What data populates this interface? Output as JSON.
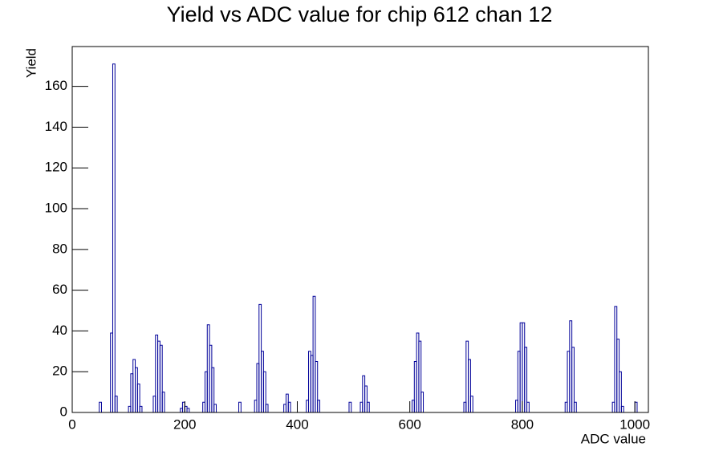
{
  "chart_data": {
    "type": "histogram",
    "title": "Yield vs ADC value for chip 612 chan 12",
    "x_label": "ADC value",
    "y_label": "Yield",
    "color": "#000099",
    "xlim": [
      0,
      1024
    ],
    "ylim": [
      0,
      179.55
    ],
    "xticks": [
      0,
      200,
      400,
      600,
      800,
      1000
    ],
    "yticks": [
      0,
      20,
      40,
      60,
      80,
      100,
      120,
      140,
      160
    ],
    "bins": [
      0,
      4,
      8,
      12,
      16,
      20,
      24,
      28,
      32,
      36,
      40,
      44,
      48,
      52,
      56,
      60,
      64,
      68,
      72,
      76,
      80,
      84,
      88,
      92,
      96,
      100,
      104,
      108,
      112,
      116,
      120,
      124,
      128,
      132,
      136,
      140,
      144,
      148,
      152,
      156,
      160,
      164,
      168,
      172,
      176,
      180,
      184,
      188,
      192,
      196,
      200,
      204,
      208,
      212,
      216,
      220,
      224,
      228,
      232,
      236,
      240,
      244,
      248,
      252,
      256,
      260,
      264,
      268,
      272,
      276,
      280,
      284,
      288,
      292,
      296,
      300,
      304,
      308,
      312,
      316,
      320,
      324,
      328,
      332,
      336,
      340,
      344,
      348,
      352,
      356,
      360,
      364,
      368,
      372,
      376,
      380,
      384,
      388,
      392,
      396,
      400,
      404,
      408,
      412,
      416,
      420,
      424,
      428,
      432,
      436,
      440,
      444,
      448,
      452,
      456,
      460,
      464,
      468,
      472,
      476,
      480,
      484,
      488,
      492,
      496,
      500,
      504,
      508,
      512,
      516,
      520,
      524,
      528,
      532,
      536,
      540,
      544,
      548,
      552,
      556,
      560,
      564,
      568,
      572,
      576,
      580,
      584,
      588,
      592,
      596,
      600,
      604,
      608,
      612,
      616,
      620,
      624,
      628,
      632,
      636,
      640,
      644,
      648,
      652,
      656,
      660,
      664,
      668,
      672,
      676,
      680,
      684,
      688,
      692,
      696,
      700,
      704,
      708,
      712,
      716,
      720,
      724,
      728,
      732,
      736,
      740,
      744,
      748,
      752,
      756,
      760,
      764,
      768,
      772,
      776,
      780,
      784,
      788,
      792,
      796,
      800,
      804,
      808,
      812,
      816,
      820,
      824,
      828,
      832,
      836,
      840,
      844,
      848,
      852,
      856,
      860,
      864,
      868,
      872,
      876,
      880,
      884,
      888,
      892,
      896,
      900,
      904,
      908,
      912,
      916,
      920,
      924,
      928,
      932,
      936,
      940,
      944,
      948,
      952,
      956,
      960,
      964,
      968,
      972,
      976,
      980,
      984,
      988,
      992,
      996,
      1000,
      1004,
      1008,
      1012,
      1016,
      1020,
      1024
    ],
    "counts": [
      0,
      0,
      0,
      0,
      0,
      0,
      0,
      0,
      0,
      0,
      0,
      0,
      5,
      0,
      0,
      0,
      0,
      39,
      171,
      8,
      0,
      0,
      0,
      0,
      0,
      3,
      19,
      26,
      22,
      14,
      3,
      0,
      0,
      0,
      0,
      0,
      8,
      38,
      35,
      33,
      10,
      0,
      0,
      0,
      0,
      0,
      0,
      0,
      2,
      5,
      3,
      2,
      0,
      0,
      0,
      0,
      0,
      0,
      5,
      20,
      43,
      33,
      22,
      4,
      0,
      0,
      0,
      0,
      0,
      0,
      0,
      0,
      0,
      0,
      5,
      0,
      0,
      0,
      0,
      0,
      0,
      6,
      24,
      53,
      30,
      20,
      4,
      0,
      0,
      0,
      0,
      0,
      0,
      0,
      4,
      9,
      5,
      0,
      0,
      0,
      0,
      0,
      0,
      0,
      6,
      30,
      28,
      57,
      25,
      6,
      0,
      0,
      0,
      0,
      0,
      0,
      0,
      0,
      0,
      0,
      0,
      0,
      0,
      5,
      0,
      0,
      0,
      0,
      5,
      18,
      13,
      5,
      0,
      0,
      0,
      0,
      0,
      0,
      0,
      0,
      0,
      0,
      0,
      0,
      0,
      0,
      0,
      0,
      0,
      0,
      0,
      6,
      25,
      39,
      35,
      10,
      0,
      0,
      0,
      0,
      0,
      0,
      0,
      0,
      0,
      0,
      0,
      0,
      0,
      0,
      0,
      0,
      0,
      0,
      5,
      35,
      26,
      8,
      0,
      0,
      0,
      0,
      0,
      0,
      0,
      0,
      0,
      0,
      0,
      0,
      0,
      0,
      0,
      0,
      0,
      0,
      0,
      6,
      30,
      44,
      44,
      32,
      5,
      0,
      0,
      0,
      0,
      0,
      0,
      0,
      0,
      0,
      0,
      0,
      0,
      0,
      0,
      0,
      0,
      5,
      30,
      45,
      32,
      5,
      0,
      0,
      0,
      0,
      0,
      0,
      0,
      0,
      0,
      0,
      0,
      0,
      0,
      0,
      0,
      0,
      5,
      52,
      36,
      20,
      3,
      0,
      0,
      0,
      0,
      0,
      5,
      0,
      0,
      0,
      0,
      0
    ]
  }
}
